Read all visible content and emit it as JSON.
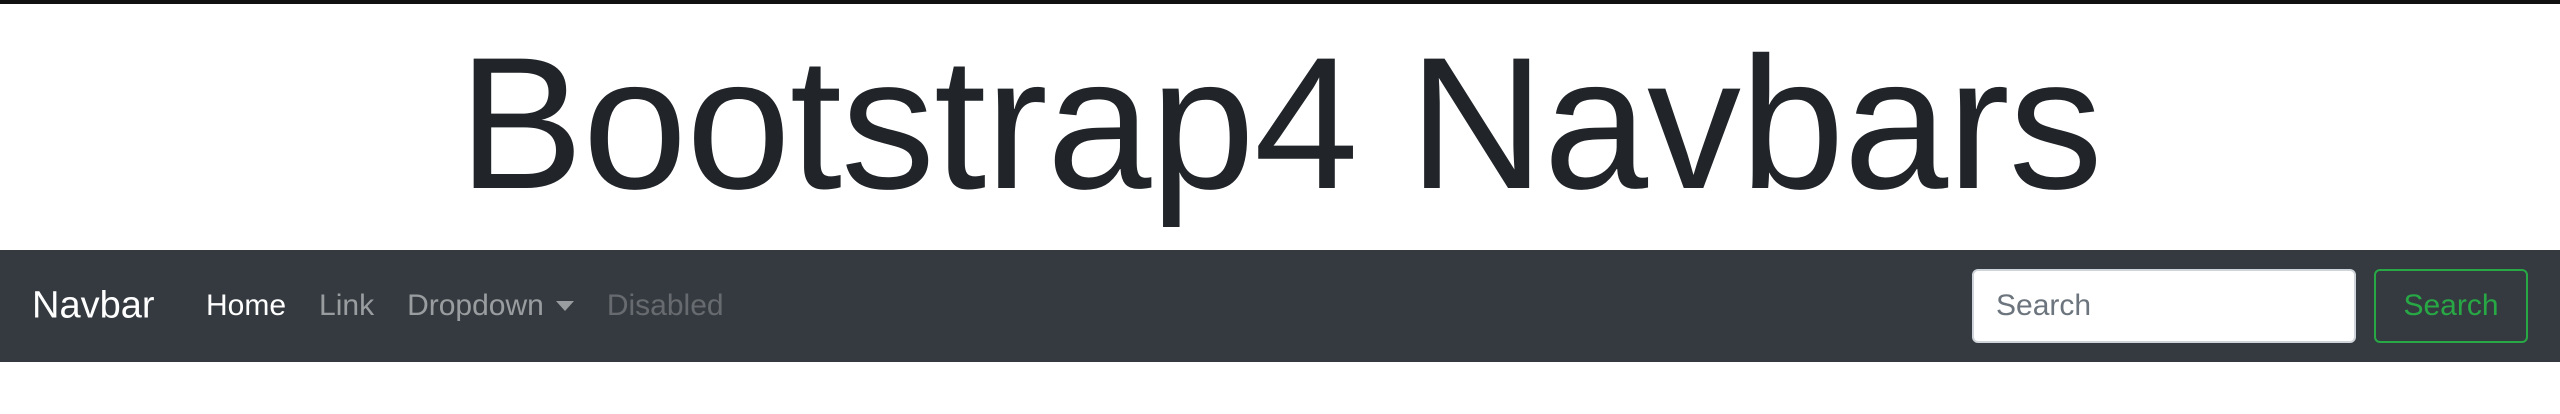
{
  "page": {
    "title": "Bootstrap4 Navbars"
  },
  "navbar": {
    "brand": "Navbar",
    "items": [
      {
        "label": "Home",
        "state": "active"
      },
      {
        "label": "Link",
        "state": "normal"
      },
      {
        "label": "Dropdown",
        "state": "normal"
      },
      {
        "label": "Disabled",
        "state": "disabled"
      }
    ],
    "search": {
      "placeholder": "Search",
      "value": "",
      "button_label": "Search"
    }
  },
  "colors": {
    "navbar_bg": "#343a40",
    "success": "#28a745",
    "title_text": "#212529"
  },
  "icons": {
    "dropdown": "caret-down-icon"
  }
}
